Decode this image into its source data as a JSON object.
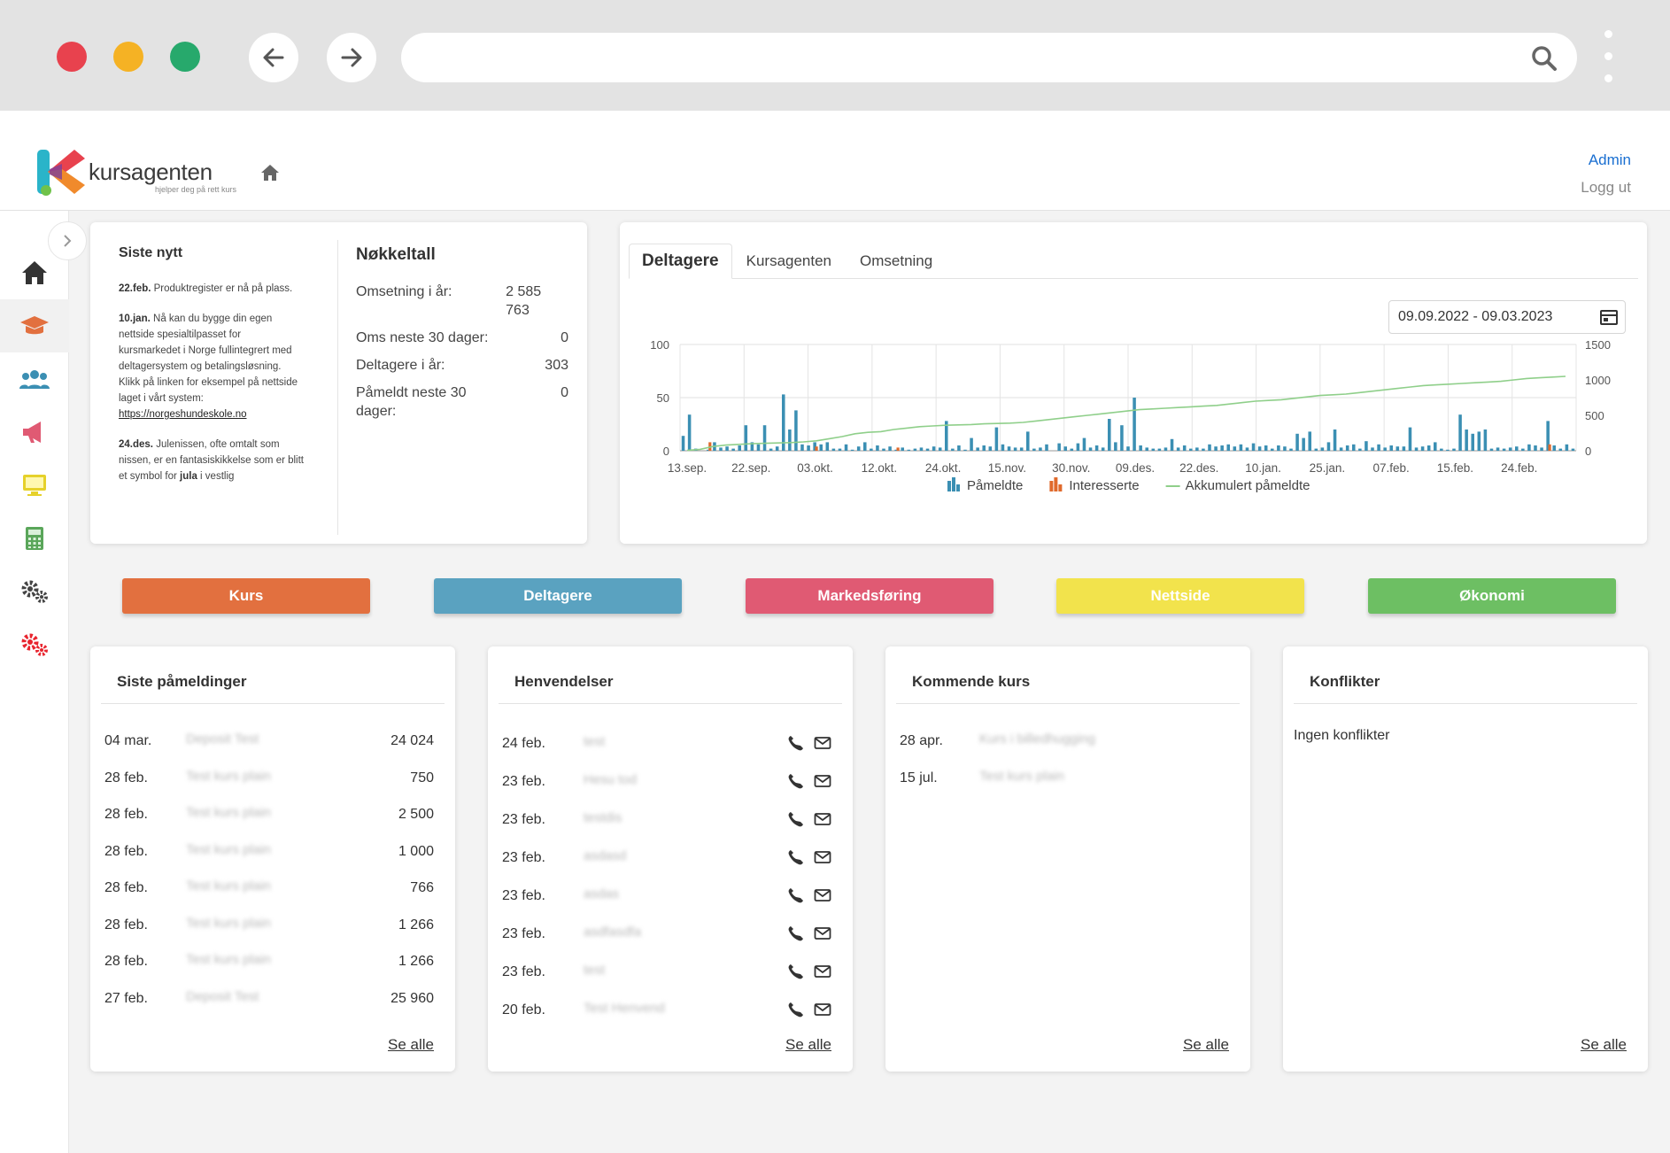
{
  "brand": {
    "name": "kursagenten",
    "tagline": "hjelper deg på rett kurs"
  },
  "header": {
    "admin": "Admin",
    "logout": "Logg ut"
  },
  "news": {
    "title": "Siste nytt",
    "items": [
      {
        "date": "22.feb.",
        "text": "Produktregister er nå på plass."
      },
      {
        "date": "10.jan.",
        "text": "Nå kan du bygge din egen nettside spesialtilpasset for kursmarkedet i Norge fullintegrert med deltagersystem og betalingsløsning. Klikk på linken for eksempel på nettside laget i vårt system: ",
        "link": "https://norgeshundeskole.no"
      },
      {
        "date": "24.des.",
        "text": "Julenissen, ofte omtalt som nissen, er en fantasiskikkelse som er blitt et symbol for",
        "bold_tail": "jula",
        "tail": "i vestlig"
      }
    ]
  },
  "kpi": {
    "title": "Nøkkeltall",
    "rows": [
      {
        "label": "Omsetning i år:",
        "value": "2 585 763"
      },
      {
        "label": "Oms neste 30 dager:",
        "value": "0"
      },
      {
        "label": "Deltagere i år:",
        "value": "303"
      },
      {
        "label": "Påmeldt neste 30 dager:",
        "value": "0"
      }
    ]
  },
  "chart_tabs": [
    "Deltagere",
    "Kursagenten",
    "Omsetning"
  ],
  "date_range": "09.09.2022 - 09.03.2023",
  "chart_data": {
    "type": "bar",
    "x_tick_labels": [
      "13.sep.",
      "22.sep.",
      "03.okt.",
      "12.okt.",
      "24.okt.",
      "15.nov.",
      "30.nov.",
      "09.des.",
      "22.des.",
      "10.jan.",
      "25.jan.",
      "07.feb.",
      "15.feb.",
      "24.feb."
    ],
    "y_left": {
      "ticks": [
        0,
        50,
        100
      ],
      "range": [
        0,
        100
      ]
    },
    "y_right": {
      "ticks": [
        0,
        500,
        1000,
        1500
      ],
      "range": [
        0,
        1500
      ]
    },
    "grid": true,
    "legend_position": "bottom",
    "colors": {
      "pameldte": "#3b8fb3",
      "interesserte": "#e06a2c",
      "akkumulert": "#8fcf8a"
    },
    "series": [
      {
        "name": "Påmeldte",
        "kind": "bar",
        "axis": "left",
        "values": [
          14,
          34,
          2,
          0,
          1,
          8,
          3,
          4,
          2,
          5,
          24,
          8,
          6,
          24,
          2,
          4,
          53,
          20,
          38,
          6,
          5,
          8,
          6,
          8,
          2,
          2,
          6,
          1,
          4,
          8,
          2,
          5,
          2,
          4,
          1,
          3,
          1,
          2,
          3,
          2,
          4,
          3,
          28,
          2,
          5,
          1,
          12,
          3,
          5,
          4,
          22,
          6,
          4,
          3,
          3,
          18,
          2,
          3,
          6,
          0,
          7,
          4,
          2,
          7,
          12,
          3,
          5,
          3,
          30,
          8,
          24,
          4,
          50,
          5,
          3,
          2,
          2,
          3,
          11,
          3,
          5,
          2,
          3,
          2,
          6,
          4,
          5,
          6,
          4,
          6,
          3,
          7,
          4,
          5,
          2,
          5,
          4,
          2,
          16,
          12,
          18,
          2,
          3,
          8,
          20,
          3,
          5,
          6,
          2,
          9,
          3,
          6,
          3,
          5,
          4,
          4,
          22,
          3,
          4,
          5,
          8,
          2,
          1,
          2,
          34,
          20,
          16,
          18,
          20,
          2,
          3,
          2,
          3,
          4,
          2,
          6,
          5,
          3,
          28,
          5,
          2,
          6,
          2
        ]
      },
      {
        "name": "Interesserte",
        "kind": "bar",
        "axis": "left",
        "values": [
          0,
          0,
          0,
          0,
          8,
          0,
          0,
          0,
          0,
          0,
          0,
          0,
          0,
          0,
          0,
          0,
          0,
          0,
          0,
          0,
          0,
          4,
          0,
          0,
          0,
          0,
          0,
          0,
          0,
          0,
          0,
          0,
          0,
          0,
          3,
          0,
          0,
          0,
          0,
          0,
          0,
          0,
          0,
          0,
          0,
          0,
          0,
          0,
          0,
          0,
          0,
          0,
          0,
          0,
          0,
          0,
          0,
          0,
          0,
          0,
          0,
          0,
          0,
          0,
          0,
          0,
          0,
          0,
          0,
          0,
          0,
          0,
          0,
          0,
          0,
          0,
          0,
          0,
          0,
          0,
          0,
          0,
          0,
          0,
          0,
          0,
          0,
          0,
          0,
          0,
          0,
          0,
          0,
          0,
          0,
          0,
          0,
          0,
          0,
          0,
          0,
          0,
          0,
          0,
          0,
          0,
          0,
          0,
          0,
          0,
          0,
          0,
          0,
          0,
          0,
          0,
          0,
          0,
          0,
          0,
          0,
          0,
          0,
          0,
          0,
          0,
          0,
          0,
          0,
          0,
          0,
          0,
          0,
          0,
          0,
          0,
          0,
          0,
          6,
          0,
          0,
          0,
          0
        ]
      },
      {
        "name": "Akkumulert påmeldte",
        "kind": "line",
        "axis": "right",
        "values": [
          5,
          20,
          60,
          80,
          90,
          100,
          105,
          110,
          115,
          125,
          140,
          170,
          200,
          240,
          260,
          270,
          300,
          320,
          340,
          350,
          360,
          365,
          370,
          380,
          385,
          390,
          400,
          420,
          440,
          460,
          480,
          500,
          520,
          540,
          560,
          580,
          590,
          600,
          610,
          620,
          630,
          640,
          660,
          680,
          700,
          710,
          720,
          740,
          760,
          780,
          790,
          800,
          820,
          840,
          860,
          880,
          900,
          920,
          930,
          940,
          950,
          960,
          970,
          980,
          1000,
          1020,
          1030,
          1040,
          1050
        ]
      }
    ]
  },
  "action_buttons": [
    {
      "label": "Kurs",
      "color": "#e2703f"
    },
    {
      "label": "Deltagere",
      "color": "#5aa2c0"
    },
    {
      "label": "Markedsføring",
      "color": "#e05a73"
    },
    {
      "label": "Nettside",
      "color": "#f2e34c"
    },
    {
      "label": "Økonomi",
      "color": "#6dbf63"
    }
  ],
  "registrations": {
    "title": "Siste påmeldinger",
    "rows": [
      {
        "date": "04 mar.",
        "name": "Deposit Test",
        "amount": "24 024"
      },
      {
        "date": "28 feb.",
        "name": "Test kurs plain",
        "amount": "750"
      },
      {
        "date": "28 feb.",
        "name": "Test kurs plain",
        "amount": "2 500"
      },
      {
        "date": "28 feb.",
        "name": "Test kurs plain",
        "amount": "1 000"
      },
      {
        "date": "28 feb.",
        "name": "Test kurs plain",
        "amount": "766"
      },
      {
        "date": "28 feb.",
        "name": "Test kurs plain",
        "amount": "1 266"
      },
      {
        "date": "28 feb.",
        "name": "Test kurs plain",
        "amount": "1 266"
      },
      {
        "date": "27 feb.",
        "name": "Deposit Test",
        "amount": "25 960"
      }
    ],
    "see_all": "Se alle"
  },
  "inquiries": {
    "title": "Henvendelser",
    "rows": [
      {
        "date": "24 feb.",
        "name": "test"
      },
      {
        "date": "23 feb.",
        "name": "Hesu tod"
      },
      {
        "date": "23 feb.",
        "name": "testdis"
      },
      {
        "date": "23 feb.",
        "name": "asdasd"
      },
      {
        "date": "23 feb.",
        "name": "asdas"
      },
      {
        "date": "23 feb.",
        "name": "asdfasdfa"
      },
      {
        "date": "23 feb.",
        "name": "test"
      },
      {
        "date": "20 feb.",
        "name": "Test Henvend"
      }
    ],
    "see_all": "Se alle"
  },
  "upcoming": {
    "title": "Kommende kurs",
    "rows": [
      {
        "date": "28 apr.",
        "name": "Kurs i billedhugging"
      },
      {
        "date": "15 jul.",
        "name": "Test kurs plain"
      }
    ],
    "see_all": "Se alle"
  },
  "conflicts": {
    "title": "Konflikter",
    "empty": "Ingen konflikter",
    "see_all": "Se alle"
  }
}
